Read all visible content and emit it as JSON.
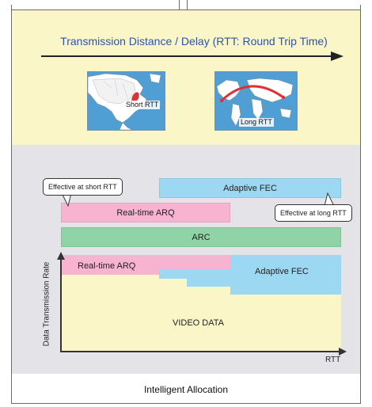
{
  "top_panel": {
    "title": "Transmission Distance / Delay (RTT: Round Trip Time)",
    "map_short_label": "Short RTT",
    "map_long_label": "Long RTT"
  },
  "bars": {
    "adaptive_fec": "Adaptive FEC",
    "realtime_arq": "Real-time ARQ",
    "arc": "ARC"
  },
  "callouts": {
    "short": "Effective at short RTT",
    "long": "Effective at long RTT"
  },
  "chart_data": {
    "type": "area",
    "ylabel": "Data Transmission Rate",
    "xlabel": "RTT",
    "layers": {
      "video": "VIDEO DATA",
      "arq": "Real-time ARQ",
      "fec": "Adaptive FEC"
    }
  },
  "caption": "Intelligent Allocation",
  "colors": {
    "top_panel": "#fbf6c8",
    "mid_panel": "#e4e4e8",
    "adaptive_fec": "#9dd8f3",
    "realtime_arq": "#f7b3cf",
    "arc": "#8fd3a6",
    "title_text": "#2b55a6",
    "route_arc": "#e0303a"
  }
}
